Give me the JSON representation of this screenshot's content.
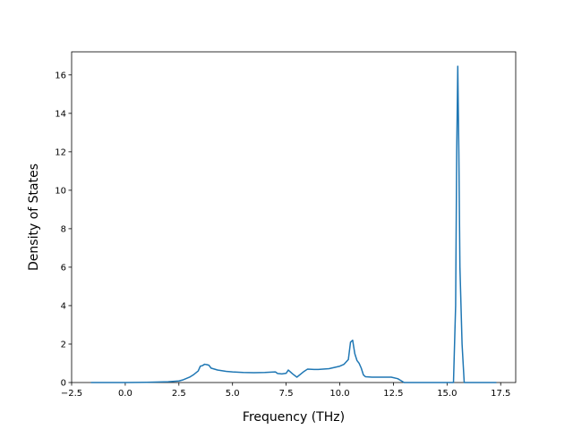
{
  "chart_data": {
    "type": "line",
    "title": "",
    "xlabel": "Frequency (THz)",
    "ylabel": "Density of States",
    "xlim": [
      -2.5,
      18.2
    ],
    "ylim": [
      0,
      17.2
    ],
    "grid": false,
    "xticks": [
      -2.5,
      0.0,
      2.5,
      5.0,
      7.5,
      10.0,
      12.5,
      15.0,
      17.5
    ],
    "xtick_labels": [
      "−2.5",
      "0.0",
      "2.5",
      "5.0",
      "7.5",
      "10.0",
      "12.5",
      "15.0",
      "17.5"
    ],
    "yticks": [
      0,
      2,
      4,
      6,
      8,
      10,
      12,
      14,
      16
    ],
    "ytick_labels": [
      "0",
      "2",
      "4",
      "6",
      "8",
      "10",
      "12",
      "14",
      "16"
    ],
    "series": [
      {
        "color": "#1f77b4",
        "x": [
          -1.6,
          -1.0,
          0.0,
          1.0,
          2.0,
          2.5,
          2.7,
          3.0,
          3.2,
          3.4,
          3.5,
          3.6,
          3.7,
          3.8,
          3.9,
          4.0,
          4.3,
          4.7,
          5.0,
          5.5,
          6.0,
          6.5,
          7.0,
          7.1,
          7.3,
          7.5,
          7.6,
          7.7,
          7.8,
          8.0,
          8.3,
          8.5,
          8.8,
          9.0,
          9.5,
          10.0,
          10.2,
          10.4,
          10.5,
          10.6,
          10.7,
          10.8,
          10.9,
          11.0,
          11.1,
          11.2,
          11.5,
          12.0,
          12.4,
          12.7,
          13.0,
          13.5,
          14.0,
          14.5,
          15.0,
          15.2,
          15.3,
          15.4,
          15.45,
          15.5,
          15.55,
          15.6,
          15.7,
          15.8,
          16.0,
          16.5,
          17.0,
          17.3
        ],
        "y": [
          0.0,
          0.0,
          0.0,
          0.01,
          0.04,
          0.08,
          0.14,
          0.28,
          0.42,
          0.6,
          0.85,
          0.88,
          0.95,
          0.93,
          0.9,
          0.75,
          0.65,
          0.58,
          0.55,
          0.52,
          0.51,
          0.52,
          0.55,
          0.47,
          0.45,
          0.48,
          0.65,
          0.55,
          0.45,
          0.28,
          0.55,
          0.7,
          0.68,
          0.68,
          0.72,
          0.85,
          0.95,
          1.2,
          2.1,
          2.2,
          1.5,
          1.15,
          1.0,
          0.75,
          0.4,
          0.3,
          0.28,
          0.28,
          0.28,
          0.2,
          0.0,
          0.0,
          0.0,
          0.0,
          0.0,
          0.0,
          0.0,
          4.0,
          12.0,
          16.45,
          12.0,
          6.0,
          2.0,
          0.0,
          0.0,
          0.0,
          0.0,
          0.0
        ]
      }
    ]
  }
}
